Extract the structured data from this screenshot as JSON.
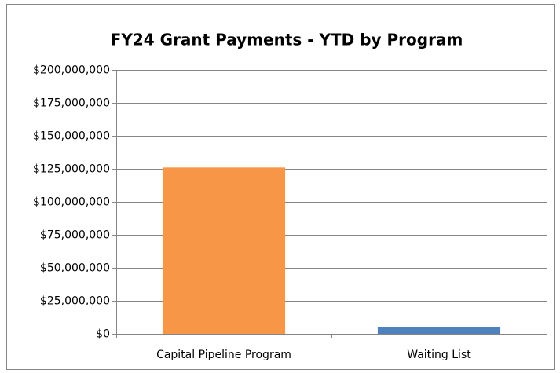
{
  "chart_data": {
    "type": "bar",
    "title": "FY24 Grant Payments - YTD by Program",
    "categories": [
      "Capital Pipeline Program",
      "Waiting List"
    ],
    "values": [
      126000000,
      5000000
    ],
    "colors": [
      "#f79646",
      "#4f81bd"
    ],
    "ylim": [
      0,
      200000000
    ],
    "yticks": [
      {
        "value": 0,
        "label": "$0"
      },
      {
        "value": 25000000,
        "label": "$25,000,000"
      },
      {
        "value": 50000000,
        "label": "$50,000,000"
      },
      {
        "value": 75000000,
        "label": "$75,000,000"
      },
      {
        "value": 100000000,
        "label": "$100,000,000"
      },
      {
        "value": 125000000,
        "label": "$125,000,000"
      },
      {
        "value": 150000000,
        "label": "$150,000,000"
      },
      {
        "value": 175000000,
        "label": "$175,000,000"
      },
      {
        "value": 200000000,
        "label": "$200,000,000"
      }
    ],
    "grid": true
  }
}
